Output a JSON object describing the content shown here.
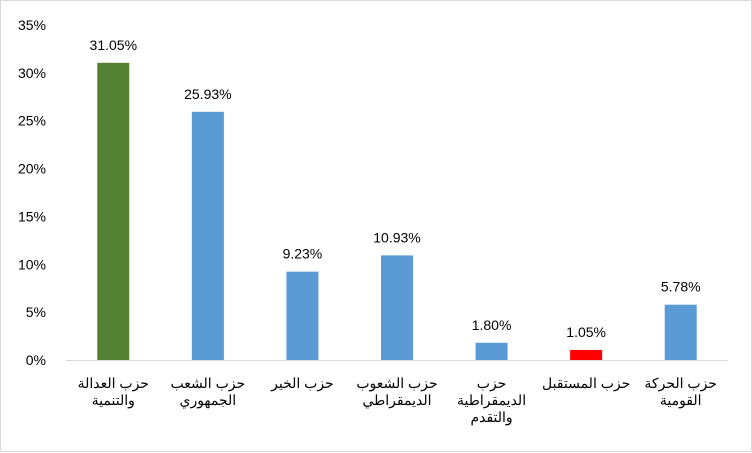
{
  "chart_data": {
    "type": "bar",
    "title": "",
    "xlabel": "",
    "ylabel": "",
    "ylim": [
      0,
      35
    ],
    "yticks": [
      0,
      5,
      10,
      15,
      20,
      25,
      30,
      35
    ],
    "ytick_labels": [
      "0%",
      "5%",
      "10%",
      "15%",
      "20%",
      "25%",
      "30%",
      "35%"
    ],
    "grid": false,
    "categories": [
      "حزب العدالة\nوالتنمية",
      "حزب الشعب\nالجمهوري",
      "حزب الخير",
      "حزب الشعوب\nالديمقراطي",
      "حزب\nالديمقراطية\nوالتقدم",
      "حزب المستقبل",
      "حزب الحركة\nالقومية"
    ],
    "values": [
      31.05,
      25.93,
      9.23,
      10.93,
      1.8,
      1.05,
      5.78
    ],
    "data_labels": [
      "31.05%",
      "25.93%",
      "9.23%",
      "10.93%",
      "1.80%",
      "1.05%",
      "5.78%"
    ],
    "colors": [
      "#548235",
      "#5b9bd5",
      "#5b9bd5",
      "#5b9bd5",
      "#5b9bd5",
      "#ff0000",
      "#5b9bd5"
    ]
  }
}
